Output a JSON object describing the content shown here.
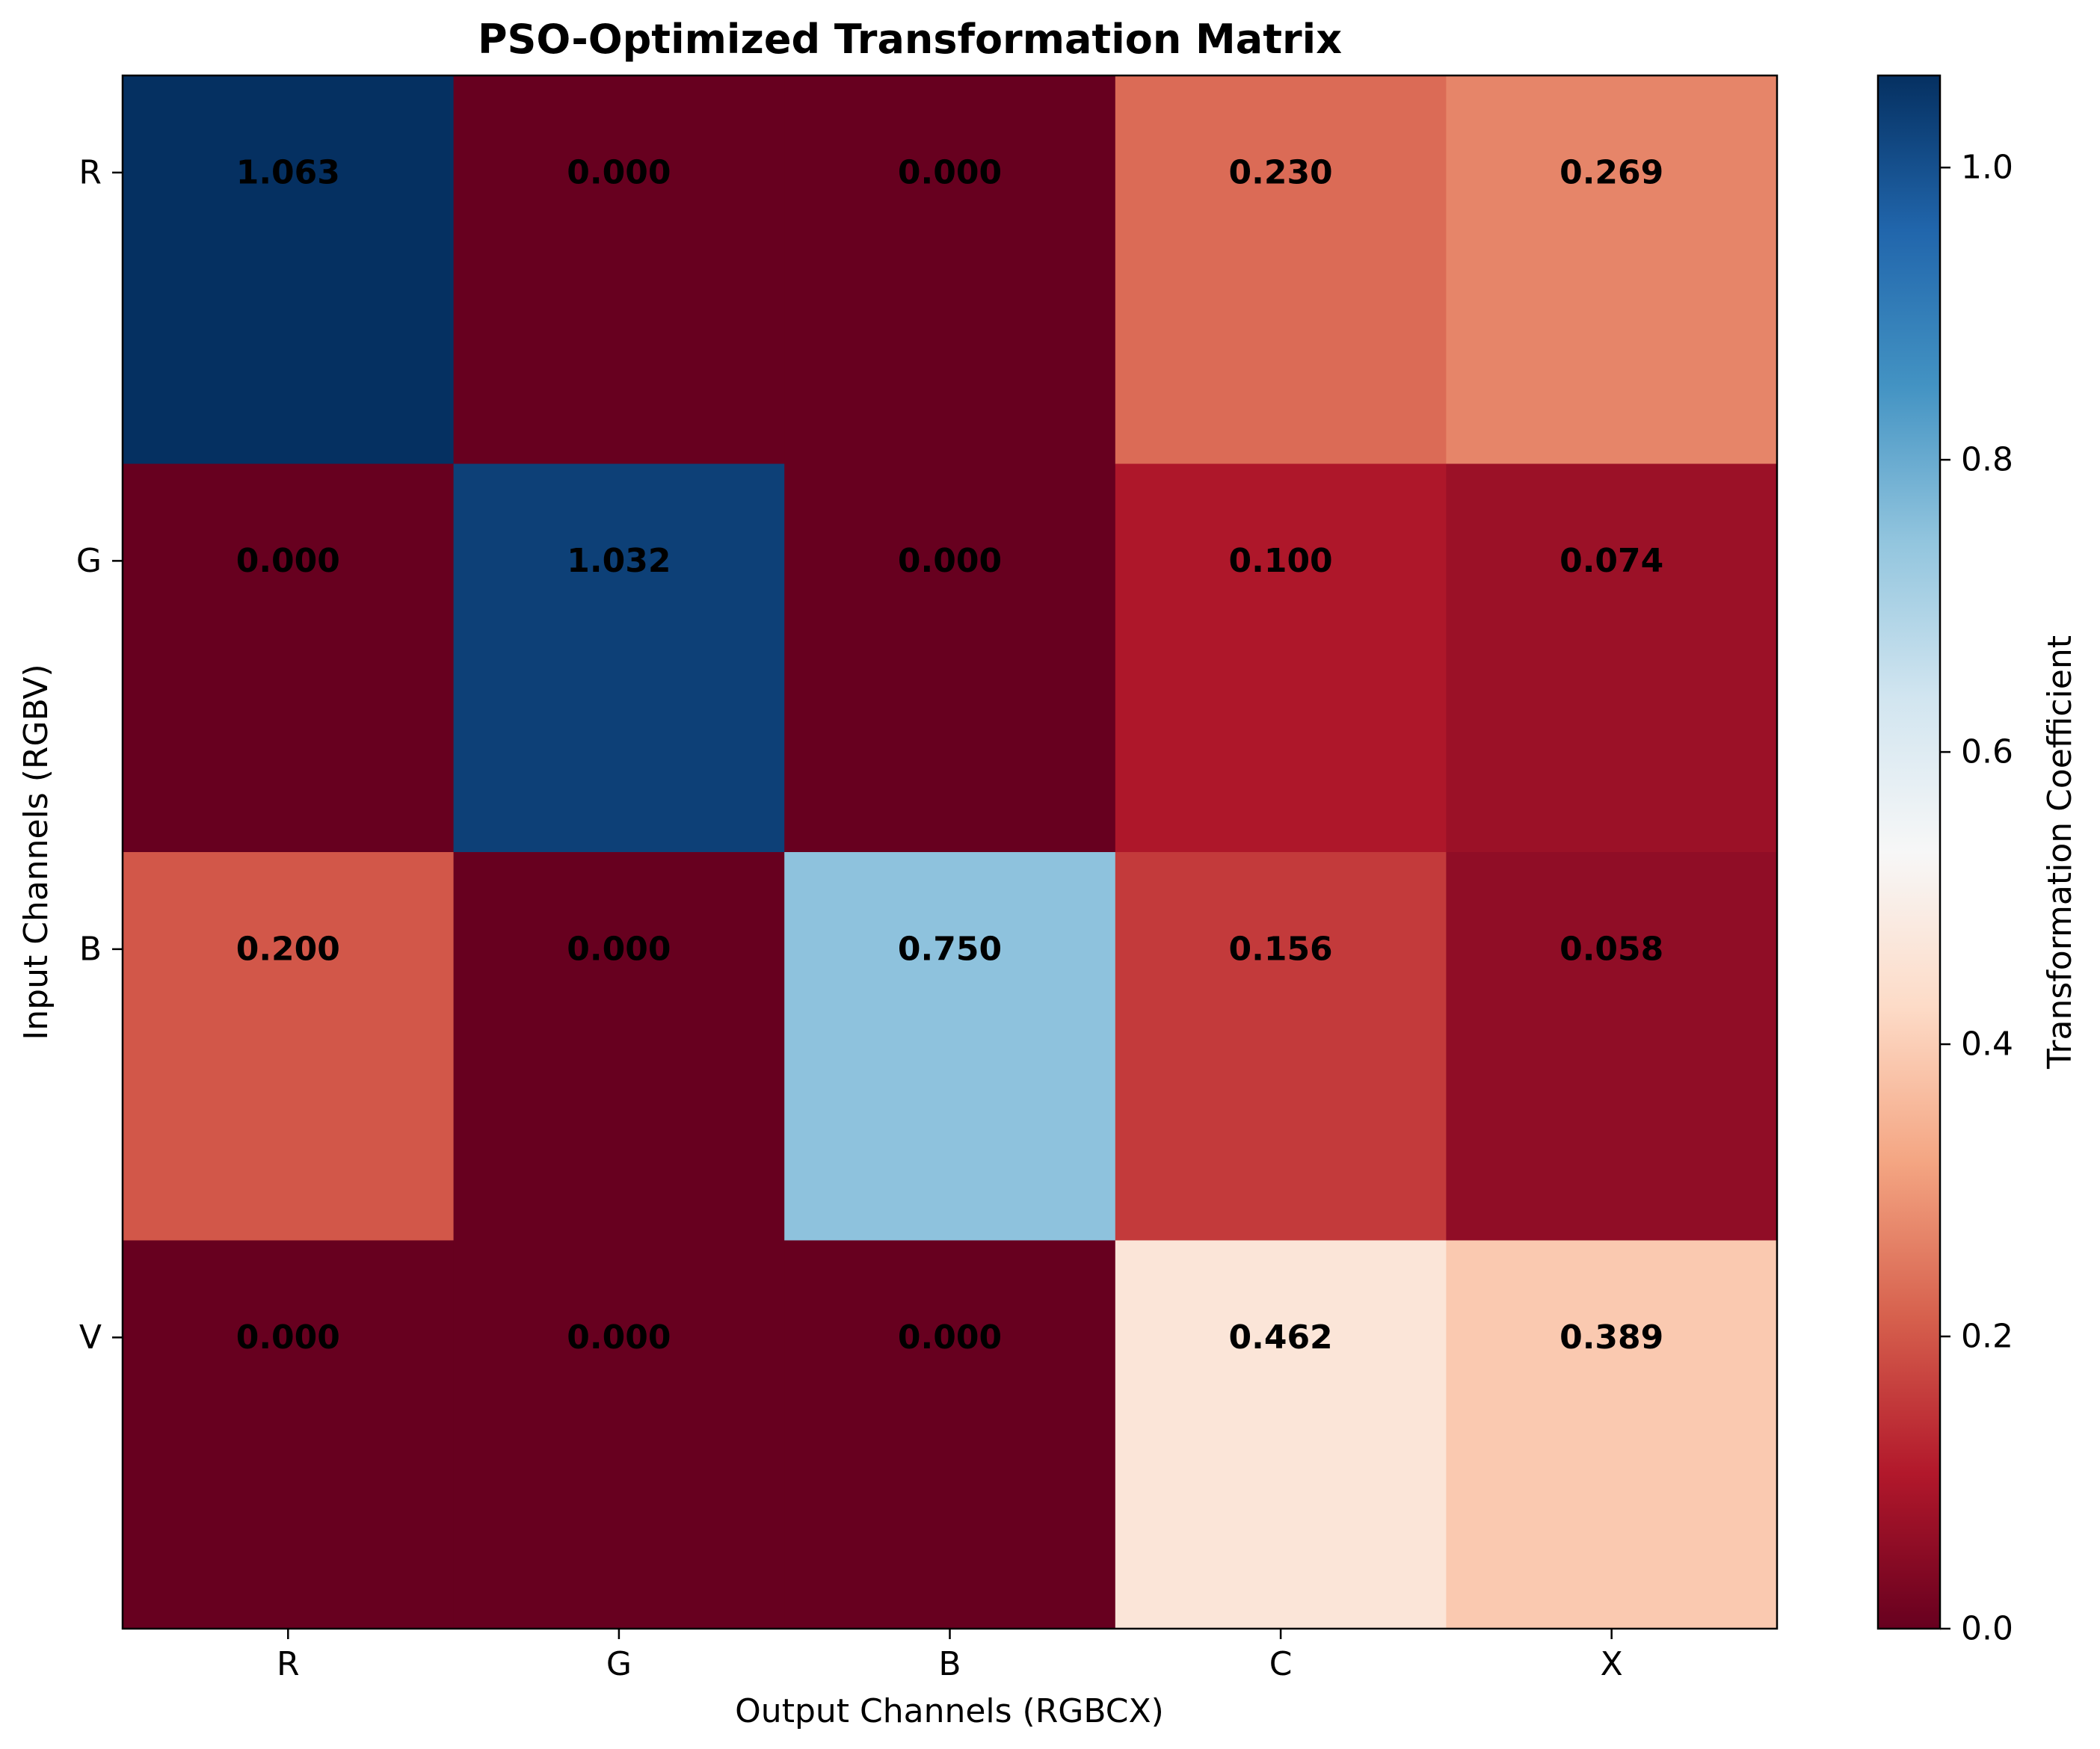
{
  "chart_data": {
    "type": "heatmap",
    "title": "PSO-Optimized Transformation Matrix",
    "xlabel": "Output Channels (RGBCX)",
    "ylabel": "Input Channels (RGBV)",
    "x_categories": [
      "R",
      "G",
      "B",
      "C",
      "X"
    ],
    "y_categories": [
      "R",
      "G",
      "B",
      "V"
    ],
    "values": [
      [
        1.063,
        0.0,
        0.0,
        0.23,
        0.269
      ],
      [
        0.0,
        1.032,
        0.0,
        0.1,
        0.074
      ],
      [
        0.2,
        0.0,
        0.75,
        0.156,
        0.058
      ],
      [
        0.0,
        0.0,
        0.0,
        0.462,
        0.389
      ]
    ],
    "value_format_decimals": 3,
    "colormap": "RdBu",
    "colorbar": {
      "label": "Transformation Coefficient",
      "vmin": 0.0,
      "vmax": 1.063,
      "ticks": [
        0.0,
        0.2,
        0.4,
        0.6,
        0.8,
        1.0
      ],
      "tick_labels": [
        "0.0",
        "0.2",
        "0.4",
        "0.6",
        "0.8",
        "1.0"
      ],
      "stops": [
        "#67001f",
        "#b2182b",
        "#d6604d",
        "#f4a582",
        "#fddbc7",
        "#f7f7f7",
        "#d1e5f0",
        "#92c5de",
        "#4393c3",
        "#2166ac",
        "#053061"
      ]
    },
    "grid": false
  }
}
